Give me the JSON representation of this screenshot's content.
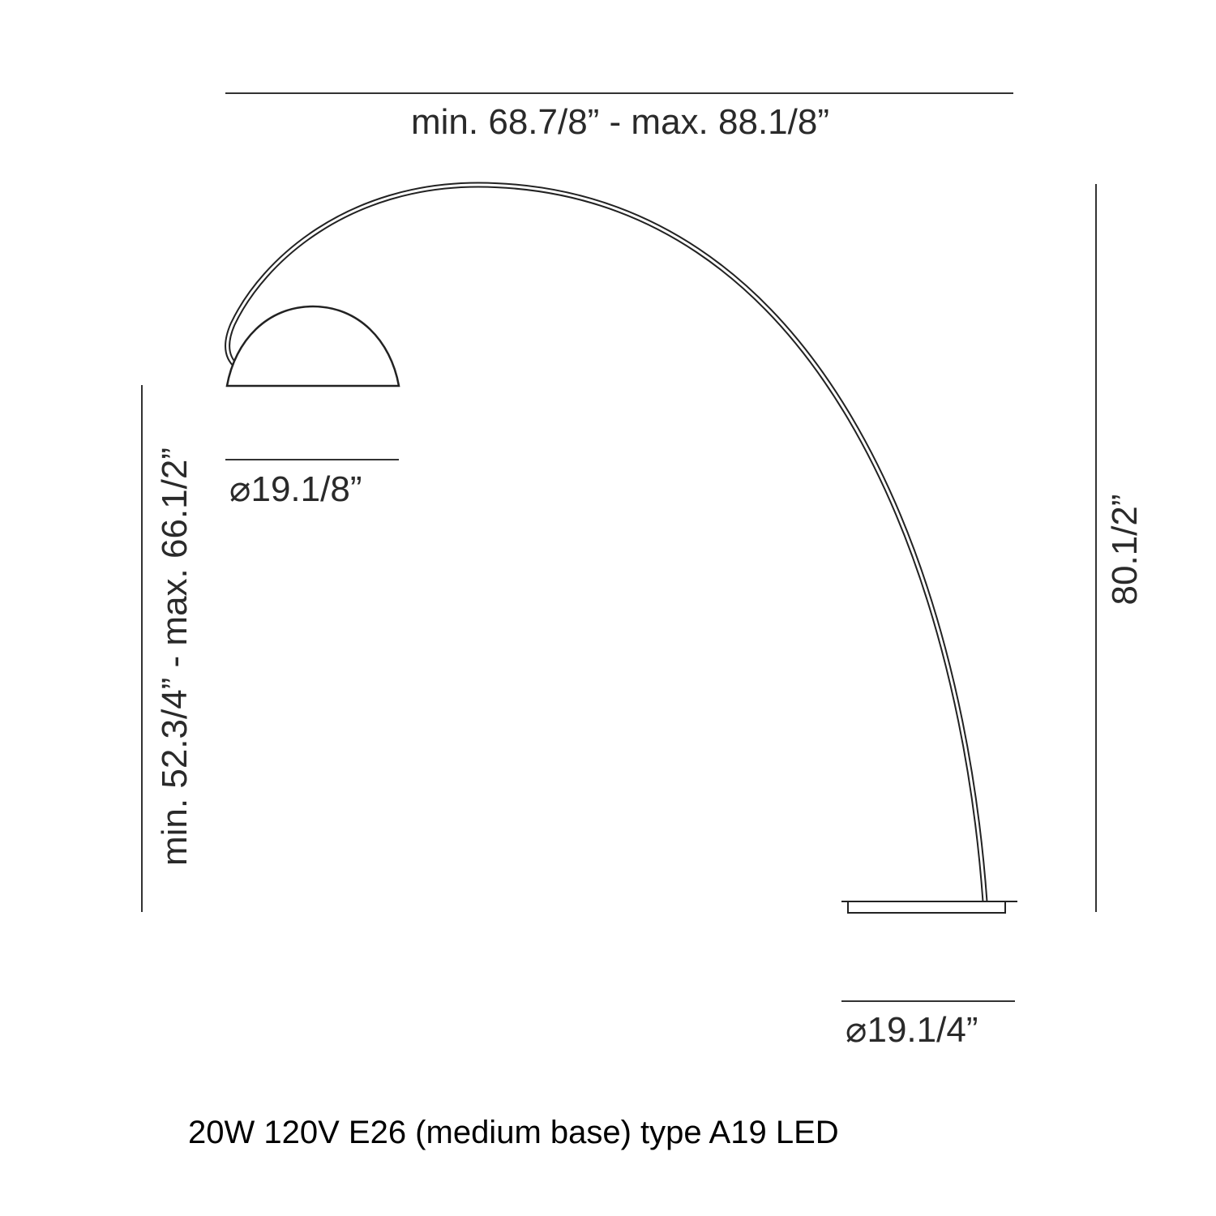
{
  "dimensions": {
    "overall_width": "min. 68.7/8” - max. 88.1/8”",
    "shade_height": "min. 52.3/4” - max. 66.1/2”",
    "shade_diameter": "⌀19.1/8”",
    "total_height": "80.1/2”",
    "base_diameter": "⌀19.1/4”"
  },
  "caption": "20W 120V E26 (medium base) type A19 LED"
}
